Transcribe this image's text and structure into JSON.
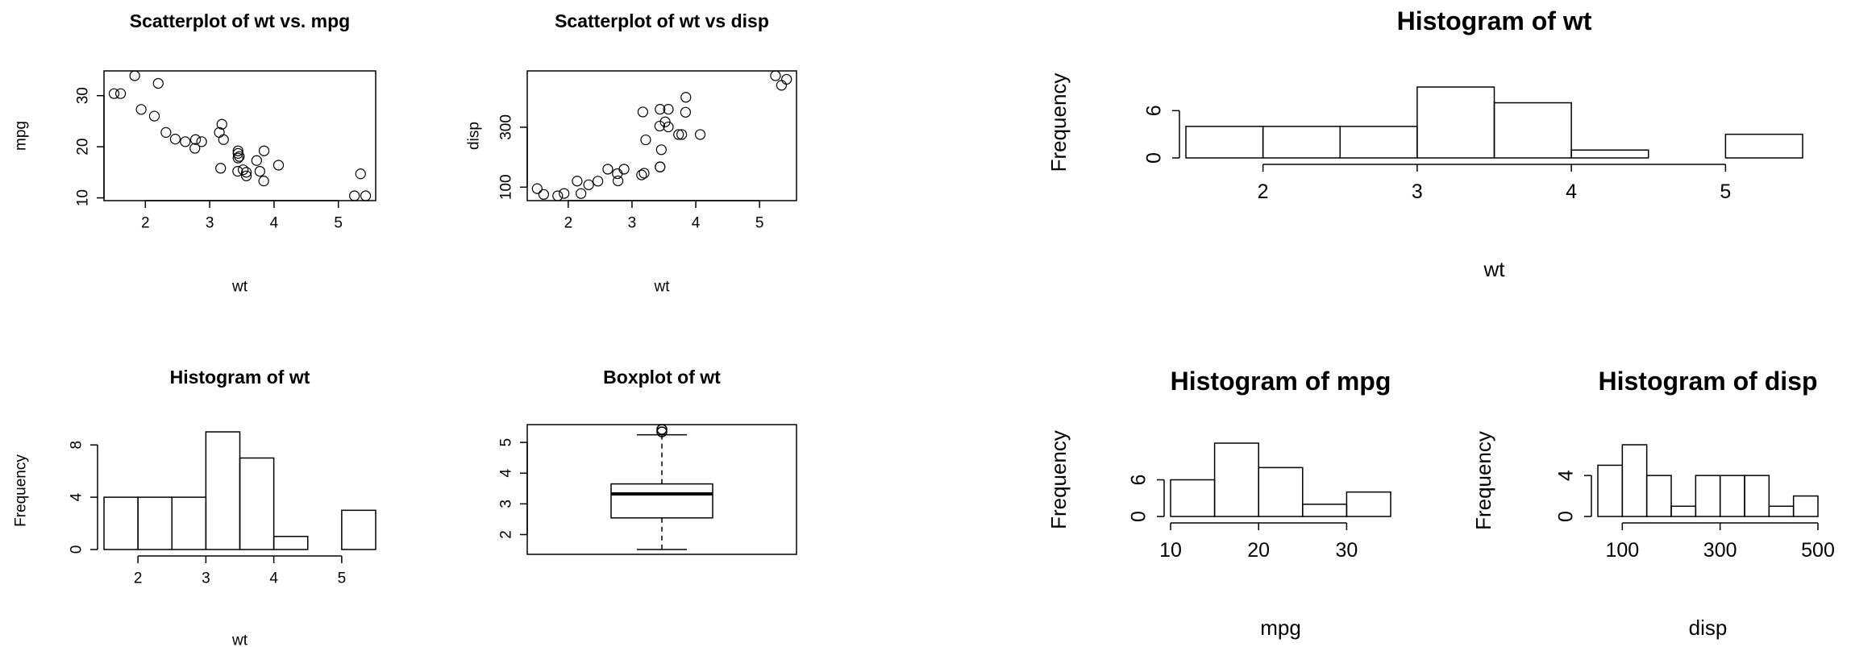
{
  "chart_data": [
    {
      "type": "scatter",
      "title": "Scatterplot of wt vs. mpg",
      "xlabel": "wt",
      "ylabel": "mpg",
      "x": [
        2.62,
        2.875,
        2.32,
        3.215,
        3.44,
        3.46,
        3.57,
        3.19,
        3.15,
        3.44,
        3.44,
        4.07,
        3.73,
        3.78,
        5.25,
        5.424,
        5.345,
        2.2,
        1.615,
        1.835,
        2.465,
        3.52,
        3.435,
        3.84,
        3.845,
        1.935,
        2.14,
        1.513,
        3.17,
        2.77,
        3.57,
        2.78
      ],
      "y": [
        21,
        21,
        22.8,
        21.4,
        18.7,
        18.1,
        14.3,
        24.4,
        22.8,
        19.2,
        17.8,
        16.4,
        17.3,
        15.2,
        10.4,
        10.4,
        14.7,
        32.4,
        30.4,
        33.9,
        21.5,
        15.5,
        15.2,
        13.3,
        19.2,
        27.3,
        26,
        30.4,
        15.8,
        19.7,
        15,
        21.4
      ],
      "xlim": [
        1.357,
        5.58
      ],
      "ylim": [
        9.46,
        34.84
      ],
      "xticks": [
        2,
        3,
        4,
        5
      ],
      "yticks": [
        10,
        20,
        30
      ],
      "frame": true
    },
    {
      "type": "scatter",
      "title": "Scatterplot of wt vs disp",
      "xlabel": "wt",
      "ylabel": "disp",
      "x": [
        2.62,
        2.875,
        2.32,
        3.215,
        3.44,
        3.46,
        3.57,
        3.19,
        3.15,
        3.44,
        3.44,
        4.07,
        3.73,
        3.78,
        5.25,
        5.424,
        5.345,
        2.2,
        1.615,
        1.835,
        2.465,
        3.52,
        3.435,
        3.84,
        3.845,
        1.935,
        2.14,
        1.513,
        3.17,
        2.77,
        3.57,
        2.78
      ],
      "y": [
        160,
        160,
        108,
        258,
        360,
        225,
        360,
        146.7,
        140.8,
        167.6,
        167.6,
        275.8,
        275.8,
        275.8,
        472,
        460,
        440,
        78.7,
        75.7,
        71.1,
        120.1,
        318,
        304,
        350,
        400,
        79,
        120.3,
        95.1,
        351,
        145,
        301,
        121
      ],
      "xlim": [
        1.357,
        5.58
      ],
      "ylim": [
        55.06,
        488.04
      ],
      "xticks": [
        2,
        3,
        4,
        5
      ],
      "yticks": [
        100,
        300
      ],
      "frame": true
    },
    {
      "type": "histogram",
      "title": "Histogram of wt",
      "xlabel": "wt",
      "ylabel": "Frequency",
      "bins": [
        1.5,
        2,
        2.5,
        3,
        3.5,
        4,
        4.5,
        5,
        5.5
      ],
      "counts": [
        4,
        4,
        4,
        9,
        7,
        1,
        0,
        3
      ],
      "xlim": [
        1.5,
        5.5
      ],
      "ylim": [
        0,
        9
      ],
      "xticks": [
        2,
        3,
        4,
        5
      ],
      "yticks": [
        0,
        4,
        8
      ],
      "frame": false
    },
    {
      "type": "box",
      "title": "Boxplot of wt",
      "stats": {
        "min": 1.513,
        "q1": 2.5425,
        "median": 3.325,
        "q3": 3.65,
        "max": 5.25
      },
      "outliers": [
        5.345,
        5.424
      ],
      "ylim": [
        1.357,
        5.58
      ],
      "yticks": [
        2,
        3,
        4,
        5
      ],
      "frame": true
    },
    {
      "type": "histogram",
      "title": "Histogram of wt",
      "xlabel": "wt",
      "ylabel": "Frequency",
      "bins": [
        1.5,
        2,
        2.5,
        3,
        3.5,
        4,
        4.5,
        5,
        5.5
      ],
      "counts": [
        4,
        4,
        4,
        9,
        7,
        1,
        0,
        3
      ],
      "xlim": [
        1.5,
        5.5
      ],
      "ylim": [
        0,
        9
      ],
      "xticks": [
        2,
        3,
        4,
        5
      ],
      "yticks": [
        0,
        6
      ],
      "frame": false
    },
    {
      "type": "histogram",
      "title": "Histogram of mpg",
      "xlabel": "mpg",
      "ylabel": "Frequency",
      "bins": [
        10,
        15,
        20,
        25,
        30,
        35
      ],
      "counts": [
        6,
        12,
        8,
        2,
        4
      ],
      "xlim": [
        10,
        35
      ],
      "ylim": [
        0,
        12
      ],
      "xticks": [
        10,
        20,
        30
      ],
      "yticks": [
        0,
        6
      ],
      "frame": false
    },
    {
      "type": "histogram",
      "title": "Histogram of disp",
      "xlabel": "disp",
      "ylabel": "Frequency",
      "bins": [
        50,
        100,
        150,
        200,
        250,
        300,
        350,
        400,
        450,
        500
      ],
      "counts": [
        5,
        7,
        4,
        1,
        4,
        4,
        4,
        1,
        2
      ],
      "xlim": [
        50,
        500
      ],
      "ylim": [
        0,
        7
      ],
      "xticks": [
        100,
        300,
        500
      ],
      "yticks": [
        0,
        4
      ],
      "frame": false
    }
  ]
}
